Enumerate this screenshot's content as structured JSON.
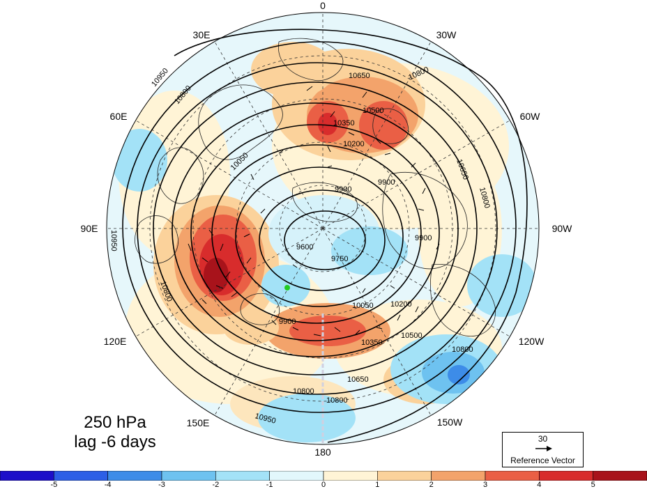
{
  "title": {
    "level": "250 hPa",
    "lag": "lag -6 days"
  },
  "longitude_labels": [
    {
      "name": "0",
      "text": "0"
    },
    {
      "name": "30w",
      "text": "30W"
    },
    {
      "name": "60w",
      "text": "60W"
    },
    {
      "name": "90w",
      "text": "90W"
    },
    {
      "name": "120w",
      "text": "120W"
    },
    {
      "name": "150w",
      "text": "150W"
    },
    {
      "name": "180",
      "text": "180"
    },
    {
      "name": "150e",
      "text": "150E"
    },
    {
      "name": "120e",
      "text": "120E"
    },
    {
      "name": "90e",
      "text": "90E"
    },
    {
      "name": "60e",
      "text": "60E"
    },
    {
      "name": "30e",
      "text": "30E"
    }
  ],
  "contour_labels": [
    "10950",
    "10800",
    "10650",
    "10500",
    "10350",
    "10200",
    "10050",
    "9900",
    "9750",
    "9600"
  ],
  "reference_vector": {
    "value": "30",
    "label": "Reference Vector"
  },
  "colorbar": {
    "ticks": [
      "-5",
      "-4",
      "-3",
      "-2",
      "-1",
      "0",
      "1",
      "2",
      "3",
      "4",
      "5"
    ],
    "colors": [
      "#1d0fc9",
      "#2d5fe6",
      "#3d8ce8",
      "#6ec2f0",
      "#a3e2f7",
      "#e2f7fc",
      "#fff4d6",
      "#fbd29b",
      "#f3a36b",
      "#ea5f45",
      "#d82c2c",
      "#a8131b"
    ]
  },
  "colors": {
    "marker": "#22cc22"
  }
}
